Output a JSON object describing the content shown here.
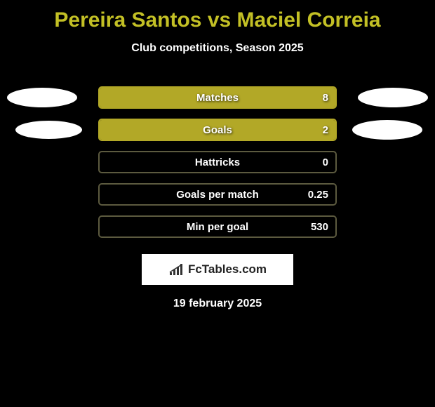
{
  "title": "Pereira Santos vs Maciel Correia",
  "subtitle": "Club competitions, Season 2025",
  "colors": {
    "title_color": "#c3c025",
    "bar_fill": "#b2a827",
    "bar_border_filled": "#b2a827",
    "bar_border_empty": "#5c5a3f",
    "background": "#000000",
    "text": "#ffffff"
  },
  "stats": [
    {
      "label": "Matches",
      "value": "8",
      "fill_side": "left",
      "fill_percent": 100,
      "show_left_ellipse": true,
      "show_right_ellipse": true,
      "ellipse_row": 1
    },
    {
      "label": "Goals",
      "value": "2",
      "fill_side": "left",
      "fill_percent": 100,
      "show_left_ellipse": true,
      "show_right_ellipse": true,
      "ellipse_row": 2
    },
    {
      "label": "Hattricks",
      "value": "0",
      "fill_side": "none",
      "fill_percent": 0,
      "show_left_ellipse": false,
      "show_right_ellipse": false
    },
    {
      "label": "Goals per match",
      "value": "0.25",
      "fill_side": "none",
      "fill_percent": 0,
      "show_left_ellipse": false,
      "show_right_ellipse": false
    },
    {
      "label": "Min per goal",
      "value": "530",
      "fill_side": "none",
      "fill_percent": 0,
      "show_left_ellipse": false,
      "show_right_ellipse": false
    }
  ],
  "logo_text": "FcTables.com",
  "date": "19 february 2025"
}
